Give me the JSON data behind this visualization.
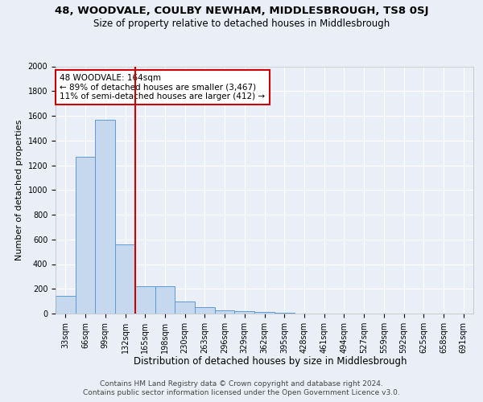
{
  "title1": "48, WOODVALE, COULBY NEWHAM, MIDDLESBROUGH, TS8 0SJ",
  "title2": "Size of property relative to detached houses in Middlesbrough",
  "xlabel": "Distribution of detached houses by size in Middlesbrough",
  "ylabel": "Number of detached properties",
  "categories": [
    "33sqm",
    "66sqm",
    "99sqm",
    "132sqm",
    "165sqm",
    "198sqm",
    "230sqm",
    "263sqm",
    "296sqm",
    "329sqm",
    "362sqm",
    "395sqm",
    "428sqm",
    "461sqm",
    "494sqm",
    "527sqm",
    "559sqm",
    "592sqm",
    "625sqm",
    "658sqm",
    "691sqm"
  ],
  "values": [
    140,
    1270,
    1570,
    560,
    220,
    220,
    95,
    50,
    28,
    18,
    10,
    5,
    0,
    0,
    0,
    0,
    0,
    0,
    0,
    0,
    0
  ],
  "bar_color": "#c5d8ee",
  "bar_edge_color": "#5b9bd5",
  "red_line_color": "#cc0000",
  "annotation_text": "48 WOODVALE: 164sqm\n← 89% of detached houses are smaller (3,467)\n11% of semi-detached houses are larger (412) →",
  "annotation_box_color": "#ffffff",
  "annotation_box_edge_color": "#cc0000",
  "footer1": "Contains HM Land Registry data © Crown copyright and database right 2024.",
  "footer2": "Contains public sector information licensed under the Open Government Licence v3.0.",
  "ylim": [
    0,
    2000
  ],
  "yticks": [
    0,
    200,
    400,
    600,
    800,
    1000,
    1200,
    1400,
    1600,
    1800,
    2000
  ],
  "background_color": "#eaeff7",
  "plot_bg_color": "#eaeff7",
  "grid_color": "#ffffff",
  "title1_fontsize": 9.5,
  "title2_fontsize": 8.5,
  "xlabel_fontsize": 8.5,
  "ylabel_fontsize": 8,
  "tick_fontsize": 7,
  "annotation_fontsize": 7.5,
  "footer_fontsize": 6.5,
  "red_line_index": 3.5
}
